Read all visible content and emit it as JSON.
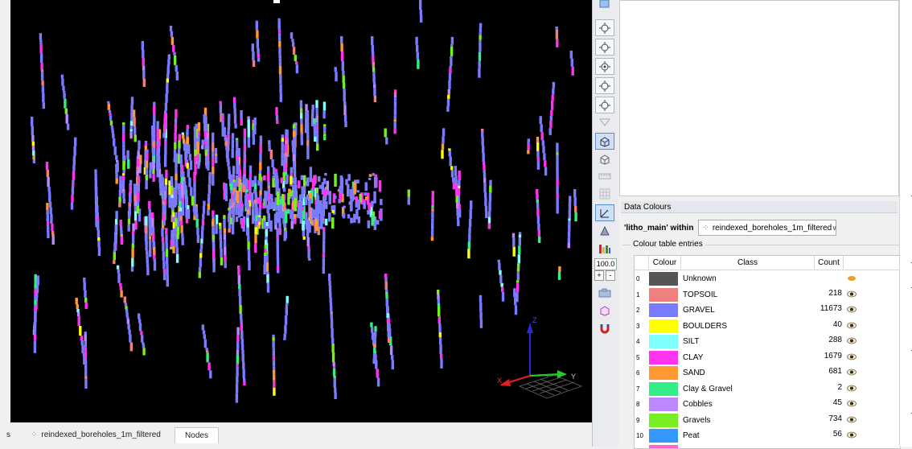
{
  "viewport": {
    "axis_labels": {
      "z": "Z",
      "x": "X",
      "y": "Y"
    }
  },
  "bottom_tabs": {
    "prev_tab": "s",
    "dataset_tab": "reindexed_boreholes_1m_filtered",
    "nodes_tab": "Nodes"
  },
  "toolstrip": {
    "zoom_value": "100.0",
    "zoom_in": "+",
    "zoom_out": "-"
  },
  "data_colours": {
    "panel_title": "Data Colours",
    "filter_label": "'litho_main' within",
    "filter_value": "reindexed_boreholes_1m_filtered",
    "group_label": "Colour table entries",
    "columns": {
      "colour": "Colour",
      "class": "Class",
      "count": "Count"
    },
    "entries": [
      {
        "index": "0",
        "class": "Unknown",
        "count": "",
        "color": "#555555",
        "visible_icon": "lamp-icon"
      },
      {
        "index": "1",
        "class": "TOPSOIL",
        "count": "218",
        "color": "#f08080",
        "visible_icon": "eye-icon"
      },
      {
        "index": "2",
        "class": "GRAVEL",
        "count": "11673",
        "color": "#7b7bff",
        "visible_icon": "eye-icon"
      },
      {
        "index": "3",
        "class": "BOULDERS",
        "count": "40",
        "color": "#ffff00",
        "visible_icon": "eye-icon"
      },
      {
        "index": "4",
        "class": "SILT",
        "count": "288",
        "color": "#80ffff",
        "visible_icon": "eye-icon"
      },
      {
        "index": "5",
        "class": "CLAY",
        "count": "1679",
        "color": "#ff33ee",
        "visible_icon": "eye-icon"
      },
      {
        "index": "6",
        "class": "SAND",
        "count": "681",
        "color": "#ff9933",
        "visible_icon": "eye-icon"
      },
      {
        "index": "7",
        "class": "Clay & Gravel",
        "count": "2",
        "color": "#33ee88",
        "visible_icon": "eye-icon"
      },
      {
        "index": "8",
        "class": "Cobbles",
        "count": "45",
        "color": "#bb88ff",
        "visible_icon": "eye-icon"
      },
      {
        "index": "9",
        "class": "Gravels",
        "count": "734",
        "color": "#77ee22",
        "visible_icon": "eye-icon"
      },
      {
        "index": "10",
        "class": "Peat",
        "count": "56",
        "color": "#3399ff",
        "visible_icon": "eye-icon"
      }
    ]
  }
}
